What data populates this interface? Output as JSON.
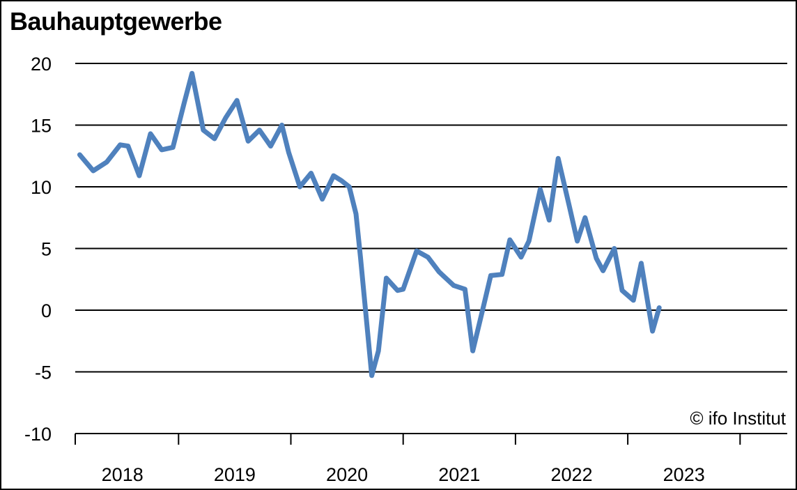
{
  "chart_data": {
    "type": "line",
    "title": "Bauhauptgewerbe",
    "credit": "© ifo Institut",
    "ylim": [
      -10,
      20
    ],
    "yticks": [
      20,
      15,
      10,
      5,
      0,
      -5,
      -10
    ],
    "xlim": [
      2017.58,
      2023.92
    ],
    "xtick_boundaries": [
      2017.58,
      2018.5,
      2019.5,
      2020.5,
      2021.5,
      2022.5,
      2023.5
    ],
    "xtick_labels": [
      "2018",
      "2019",
      "2020",
      "2021",
      "2022",
      "2023"
    ],
    "xtick_label_positions": [
      2018,
      2019,
      2020,
      2021,
      2022,
      2023
    ],
    "grid": true,
    "legend": "none",
    "color": "#4f81bd",
    "series": [
      {
        "x": [
          2017.62,
          2017.74,
          2017.86,
          2017.98,
          2018.05,
          2018.15,
          2018.25,
          2018.35,
          2018.45,
          2018.55,
          2018.62,
          2018.72,
          2018.82,
          2018.92,
          2019.02,
          2019.12,
          2019.22,
          2019.32,
          2019.42,
          2019.48,
          2019.58,
          2019.68,
          2019.78,
          2019.88,
          2019.95,
          2020.02,
          2020.08,
          2020.12,
          2020.22,
          2020.28,
          2020.35,
          2020.45,
          2020.5,
          2020.62,
          2020.72,
          2020.82,
          2020.95,
          2021.05,
          2021.12,
          2021.22,
          2021.28,
          2021.38,
          2021.45,
          2021.55,
          2021.62,
          2021.72,
          2021.8,
          2021.88,
          2021.98,
          2022.05,
          2022.12,
          2022.22,
          2022.28,
          2022.38,
          2022.45,
          2022.55,
          2022.62,
          2022.72,
          2022.78
        ],
        "y": [
          12.6,
          11.3,
          12.0,
          13.4,
          13.3,
          10.9,
          14.3,
          13.0,
          13.2,
          16.8,
          19.2,
          14.6,
          13.9,
          15.6,
          17.0,
          13.7,
          14.6,
          13.3,
          15.0,
          12.8,
          10.0,
          11.1,
          9.0,
          10.9,
          10.5,
          10.0,
          7.8,
          4.3,
          -5.3,
          -3.3,
          2.6,
          1.6,
          1.7,
          4.8,
          4.3,
          3.1,
          2.0,
          1.7,
          -3.3,
          0.5,
          2.8,
          2.9,
          5.7,
          4.3,
          5.6,
          9.8,
          7.3,
          12.3,
          8.4,
          5.6,
          7.5,
          4.2,
          3.2,
          5.0,
          1.6,
          0.8,
          3.8,
          -1.7,
          0.2
        ]
      }
    ]
  }
}
